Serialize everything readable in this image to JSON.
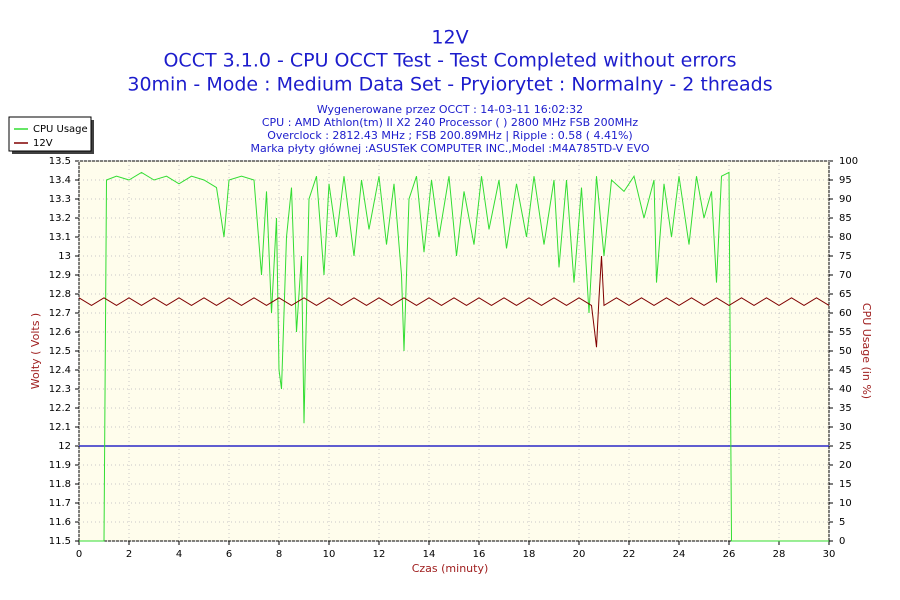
{
  "chart_data": {
    "type": "line",
    "title": "12V",
    "subtitle": [
      "OCCT 3.1.0 - CPU OCCT Test - Test Completed without errors",
      "30min - Mode : Medium Data Set - Pryiorytet : Normalny - 2 threads"
    ],
    "info": [
      "Wygenerowane przez OCCT : 14-03-11 16:02:32",
      "CPU : AMD Athlon(tm) II X2 240 Processor (  ) 2800 MHz FSB 200MHz",
      "Overclock : 2812.43 MHz ; FSB 200.89MHz | Ripple : 0.58 ( 4.41%)",
      "Marka płyty głównej :ASUSTeK COMPUTER INC.,Model :M4A785TD-V EVO"
    ],
    "xlabel": "Czas (minuty)",
    "ylabel": "Wolty ( Volts )",
    "y2label": "CPU Usage (in %)",
    "xlim": [
      0,
      30
    ],
    "xticks": [
      0,
      2,
      4,
      6,
      8,
      10,
      12,
      14,
      16,
      18,
      20,
      22,
      24,
      26,
      28,
      30
    ],
    "ylim": [
      11.5,
      13.5
    ],
    "yticks": [
      11.5,
      11.6,
      11.7,
      11.8,
      11.9,
      12,
      12.1,
      12.2,
      12.3,
      12.4,
      12.5,
      12.6,
      12.7,
      12.8,
      12.9,
      13,
      13.1,
      13.2,
      13.3,
      13.4,
      13.5
    ],
    "y2lim": [
      0,
      100
    ],
    "y2ticks": [
      0,
      5,
      10,
      15,
      20,
      25,
      30,
      35,
      40,
      45,
      50,
      55,
      60,
      65,
      70,
      75,
      80,
      85,
      90,
      95,
      100
    ],
    "grid": true,
    "legend": "upper left",
    "hline": {
      "value": 12,
      "color": "#0000c0"
    },
    "series": [
      {
        "name": "CPU Usage",
        "color": "#33dd33",
        "axis": "y2",
        "x": [
          0,
          1,
          1.1,
          1.5,
          2,
          2.5,
          3,
          3.5,
          4,
          4.5,
          5,
          5.5,
          5.8,
          6,
          6.5,
          7,
          7.3,
          7.5,
          7.7,
          7.9,
          8,
          8.1,
          8.3,
          8.5,
          8.7,
          8.9,
          9,
          9.2,
          9.5,
          9.8,
          10,
          10.3,
          10.6,
          11,
          11.3,
          11.6,
          12,
          12.3,
          12.6,
          12.9,
          13,
          13.2,
          13.5,
          13.8,
          14.1,
          14.4,
          14.8,
          15.1,
          15.4,
          15.8,
          16.1,
          16.4,
          16.8,
          17.1,
          17.5,
          17.9,
          18.2,
          18.6,
          19,
          19.2,
          19.5,
          19.8,
          20.1,
          20.4,
          20.7,
          21,
          21.3,
          21.8,
          22.2,
          22.6,
          23,
          23.1,
          23.4,
          23.7,
          24,
          24.4,
          24.7,
          25,
          25.3,
          25.5,
          25.7,
          26,
          26.1,
          30
        ],
        "values": [
          0,
          0,
          95,
          96,
          95,
          97,
          95,
          96,
          94,
          96,
          95,
          93,
          80,
          95,
          96,
          95,
          70,
          92,
          60,
          85,
          45,
          40,
          80,
          93,
          55,
          75,
          31,
          90,
          96,
          70,
          94,
          80,
          96,
          75,
          95,
          82,
          96,
          78,
          94,
          70,
          50,
          90,
          96,
          76,
          95,
          80,
          96,
          75,
          92,
          78,
          96,
          82,
          95,
          77,
          94,
          80,
          96,
          78,
          95,
          72,
          95,
          68,
          93,
          60,
          96,
          75,
          95,
          92,
          96,
          85,
          95,
          68,
          94,
          80,
          96,
          78,
          96,
          85,
          92,
          68,
          96,
          97,
          0,
          0
        ]
      },
      {
        "name": "12V",
        "color": "#800000",
        "x": [
          0,
          0.5,
          1,
          1.5,
          2,
          2.5,
          3,
          3.5,
          4,
          4.5,
          5,
          5.5,
          6,
          6.5,
          7,
          7.5,
          8,
          8.5,
          9,
          9.5,
          10,
          10.5,
          11,
          11.5,
          12,
          12.5,
          13,
          13.5,
          14,
          14.5,
          15,
          15.5,
          16,
          16.5,
          17,
          17.5,
          18,
          18.5,
          19,
          19.5,
          20,
          20.5,
          20.7,
          20.8,
          20.9,
          21,
          21.5,
          22,
          22.5,
          23,
          23.5,
          24,
          24.5,
          25,
          25.5,
          26,
          26.5,
          27,
          27.5,
          28,
          28.5,
          29,
          29.5,
          30
        ],
        "values": [
          12.78,
          12.74,
          12.78,
          12.74,
          12.78,
          12.74,
          12.78,
          12.74,
          12.78,
          12.74,
          12.78,
          12.74,
          12.78,
          12.74,
          12.78,
          12.74,
          12.78,
          12.74,
          12.78,
          12.74,
          12.78,
          12.74,
          12.78,
          12.74,
          12.78,
          12.74,
          12.78,
          12.74,
          12.78,
          12.74,
          12.78,
          12.74,
          12.78,
          12.74,
          12.78,
          12.74,
          12.78,
          12.74,
          12.78,
          12.74,
          12.78,
          12.74,
          12.52,
          12.78,
          13,
          12.74,
          12.78,
          12.74,
          12.78,
          12.74,
          12.78,
          12.74,
          12.78,
          12.74,
          12.78,
          12.74,
          12.78,
          12.74,
          12.78,
          12.74,
          12.78,
          12.74,
          12.78,
          12.74
        ]
      }
    ]
  }
}
